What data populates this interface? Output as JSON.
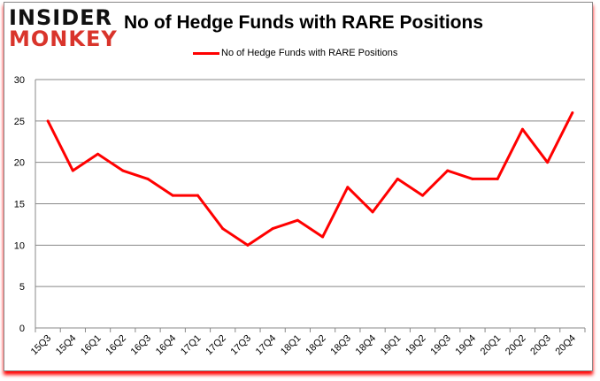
{
  "logo": {
    "line1": "INSIDER",
    "line2": "MONKEY"
  },
  "chart_data": {
    "type": "line",
    "title": "No of Hedge Funds with RARE Positions",
    "categories": [
      "15Q3",
      "15Q4",
      "16Q1",
      "16Q2",
      "16Q3",
      "16Q4",
      "17Q1",
      "17Q2",
      "17Q3",
      "17Q4",
      "18Q1",
      "18Q2",
      "18Q3",
      "18Q4",
      "19Q1",
      "19Q2",
      "19Q3",
      "19Q4",
      "20Q1",
      "20Q2",
      "20Q3",
      "20Q4"
    ],
    "series": [
      {
        "name": "No of Hedge Funds with RARE Positions",
        "color": "#ff0000",
        "values": [
          25,
          19,
          21,
          19,
          18,
          16,
          16,
          12,
          10,
          12,
          13,
          11,
          17,
          14,
          18,
          16,
          19,
          18,
          18,
          24,
          20,
          26
        ]
      }
    ],
    "ylim": [
      0,
      30
    ],
    "yticks": [
      0,
      5,
      10,
      15,
      20,
      25,
      30
    ],
    "grid": true,
    "legend": "top"
  }
}
